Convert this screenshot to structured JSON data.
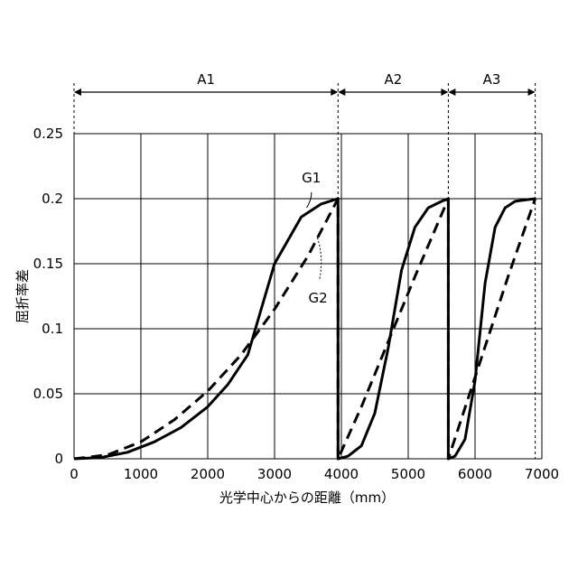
{
  "chart_data": {
    "type": "line",
    "title": "",
    "xlabel": "光学中心からの距離（mm）",
    "ylabel": "屈折率差",
    "xlim": [
      0,
      7000
    ],
    "ylim": [
      0,
      0.25
    ],
    "xticks": [
      0,
      1000,
      2000,
      3000,
      4000,
      5000,
      6000,
      7000
    ],
    "xtick_labels": [
      "0",
      "1000",
      "2000",
      "3000",
      "4000",
      "5000",
      "6000",
      "7000"
    ],
    "yticks": [
      0,
      0.05,
      0.1,
      0.15,
      0.2,
      0.25
    ],
    "ytick_labels": [
      "0",
      "0.05",
      "0.1",
      "0.15",
      "0.2",
      "0.25"
    ],
    "grid": true,
    "regions": [
      {
        "name": "A1",
        "start": 0,
        "end": 3950
      },
      {
        "name": "A2",
        "start": 3950,
        "end": 5600
      },
      {
        "name": "A3",
        "start": 5600,
        "end": 6900
      }
    ],
    "series": [
      {
        "name": "G1",
        "style": "solid",
        "x": [
          0,
          400,
          800,
          1200,
          1600,
          2000,
          2300,
          2600,
          3000,
          3400,
          3700,
          3950,
          3950,
          4100,
          4300,
          4500,
          4700,
          4900,
          5100,
          5300,
          5500,
          5600,
          5600,
          5700,
          5850,
          6000,
          6150,
          6300,
          6450,
          6600,
          6750,
          6900
        ],
        "y": [
          0,
          0.001,
          0.005,
          0.013,
          0.024,
          0.04,
          0.057,
          0.08,
          0.15,
          0.186,
          0.196,
          0.2,
          0,
          0.002,
          0.01,
          0.035,
          0.085,
          0.145,
          0.178,
          0.193,
          0.198,
          0.2,
          0,
          0.002,
          0.015,
          0.06,
          0.135,
          0.178,
          0.193,
          0.198,
          0.199,
          0.2
        ]
      },
      {
        "name": "G2",
        "style": "dashed",
        "x": [
          0,
          500,
          1000,
          1500,
          2000,
          2500,
          3000,
          3500,
          3950,
          3950,
          4300,
          4700,
          5100,
          5600,
          5600,
          5900,
          6200,
          6500,
          6900
        ],
        "y": [
          0,
          0.003,
          0.013,
          0.03,
          0.052,
          0.08,
          0.115,
          0.156,
          0.2,
          0,
          0.04,
          0.09,
          0.14,
          0.2,
          0,
          0.047,
          0.094,
          0.141,
          0.2
        ]
      }
    ]
  }
}
